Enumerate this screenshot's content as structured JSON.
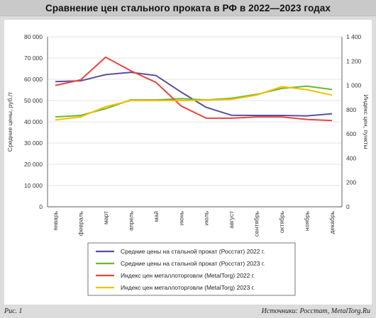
{
  "header": {
    "title": "Сравнение цен стального проката в РФ в 2022—2023 годах"
  },
  "footer": {
    "figure_label": "Рис. 1",
    "source": "Источники: Росстат, MetalTorg.Ru"
  },
  "chart_data": {
    "type": "line",
    "title": "Сравнение цен стального проката в РФ в 2022—2023 годах",
    "categories": [
      "январь",
      "февраль",
      "март",
      "апрель",
      "май",
      "июнь",
      "июль",
      "август",
      "сентябрь",
      "октябрь",
      "ноябрь",
      "декабрь"
    ],
    "ylabel_left": "Средние цены, руб./т",
    "ylabel_right": "Индекс цен, пункты",
    "ylim_left": [
      0,
      80000
    ],
    "ylim_right": [
      0,
      1400
    ],
    "yticks_left": [
      "0",
      "10 000",
      "20 000",
      "30 000",
      "40 000",
      "50 000",
      "60 000",
      "70 000",
      "80 000"
    ],
    "yticks_right": [
      "0",
      "200",
      "400",
      "600",
      "800",
      "1 000",
      "1 200",
      "1 400"
    ],
    "grid": true,
    "legend_position": "bottom",
    "series": [
      {
        "name": "Средние цены на стальной прокат (Росстат) 2022 г.",
        "axis": "left",
        "color": "#5b4ea2",
        "values": [
          58900,
          59300,
          62200,
          63300,
          61800,
          54000,
          46800,
          43100,
          43000,
          43000,
          42800,
          43800
        ]
      },
      {
        "name": "Средние цены на стальной прокат (Росстат)  2023 г.",
        "axis": "left",
        "color": "#6ab82f",
        "values": [
          42300,
          43000,
          46200,
          50300,
          50300,
          50900,
          50300,
          51100,
          52900,
          55700,
          56800,
          55200
        ]
      },
      {
        "name": "Индекс цен металлоторговли (MetalTorg) 2022 г.",
        "axis": "right",
        "color": "#e8453c",
        "values": [
          1000,
          1045,
          1232,
          1120,
          1025,
          830,
          730,
          730,
          740,
          740,
          720,
          710
        ]
      },
      {
        "name": "Индекс цен металлоторговли (MetalTorg) 2023 г.",
        "axis": "right",
        "color": "#f5c000",
        "values": [
          715,
          740,
          825,
          875,
          875,
          875,
          878,
          885,
          920,
          990,
          965,
          920
        ]
      }
    ]
  }
}
